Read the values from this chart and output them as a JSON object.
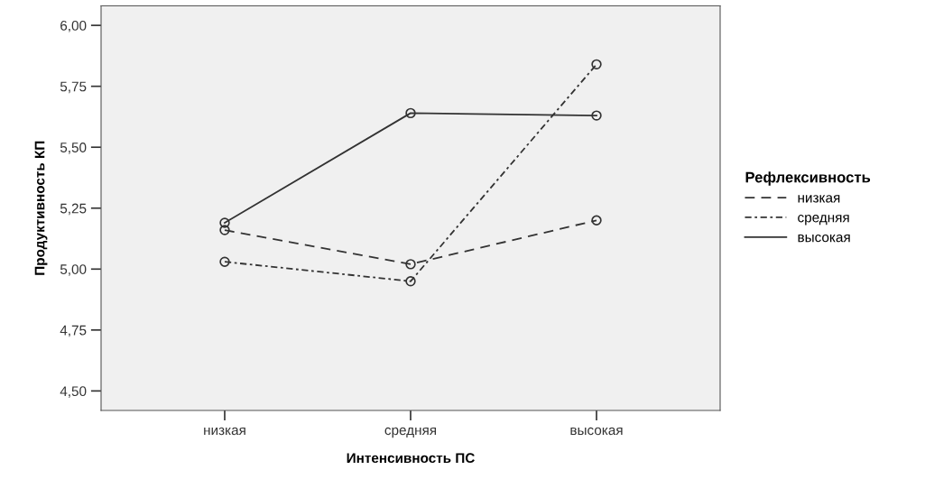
{
  "chart_data": {
    "type": "line",
    "xlabel": "Интенсивность ПС",
    "ylabel": "Продуктивность КП",
    "legend_title": "Рефлексивность",
    "legend": "right",
    "grid": false,
    "marker": "circle",
    "categories": [
      "низкая",
      "средняя",
      "высокая"
    ],
    "ylim": [
      4.42,
      6.08
    ],
    "yticks": [
      {
        "value": 4.5,
        "label": "4,50"
      },
      {
        "value": 4.75,
        "label": "4,75"
      },
      {
        "value": 5.0,
        "label": "5,00"
      },
      {
        "value": 5.25,
        "label": "5,25"
      },
      {
        "value": 5.5,
        "label": "5,50"
      },
      {
        "value": 5.75,
        "label": "5,75"
      },
      {
        "value": 6.0,
        "label": "6,00"
      }
    ],
    "series": [
      {
        "name": "низкая",
        "color": "#333333",
        "line_style": "dashed",
        "values": [
          5.16,
          5.02,
          5.2
        ]
      },
      {
        "name": "средняя",
        "color": "#333333",
        "line_style": "dotted",
        "values": [
          5.03,
          4.95,
          5.84
        ]
      },
      {
        "name": "высокая",
        "color": "#333333",
        "line_style": "solid",
        "values": [
          5.19,
          5.64,
          5.63
        ]
      }
    ]
  }
}
